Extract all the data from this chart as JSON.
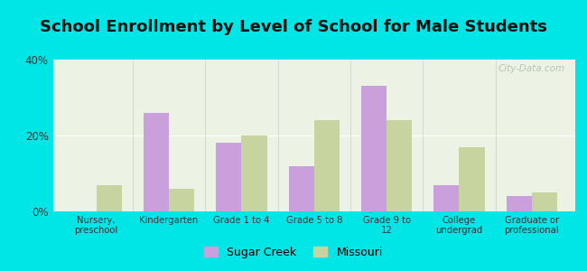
{
  "title": "School Enrollment by Level of School for Male Students",
  "categories": [
    "Nursery,\npreschool",
    "Kindergarten",
    "Grade 1 to 4",
    "Grade 5 to 8",
    "Grade 9 to\n12",
    "College\nundergrad",
    "Graduate or\nprofessional"
  ],
  "sugar_creek": [
    0.0,
    26.0,
    18.0,
    12.0,
    33.0,
    7.0,
    4.0
  ],
  "missouri": [
    7.0,
    6.0,
    20.0,
    24.0,
    24.0,
    17.0,
    5.0
  ],
  "sugar_creek_color": "#c9a0dc",
  "missouri_color": "#c8d4a0",
  "background_color": "#00e5e5",
  "ylim": [
    0,
    40
  ],
  "yticks": [
    0,
    20,
    40
  ],
  "ytick_labels": [
    "0%",
    "20%",
    "40%"
  ],
  "title_fontsize": 13,
  "legend_labels": [
    "Sugar Creek",
    "Missouri"
  ],
  "bar_width": 0.35,
  "watermark": "City-Data.com"
}
